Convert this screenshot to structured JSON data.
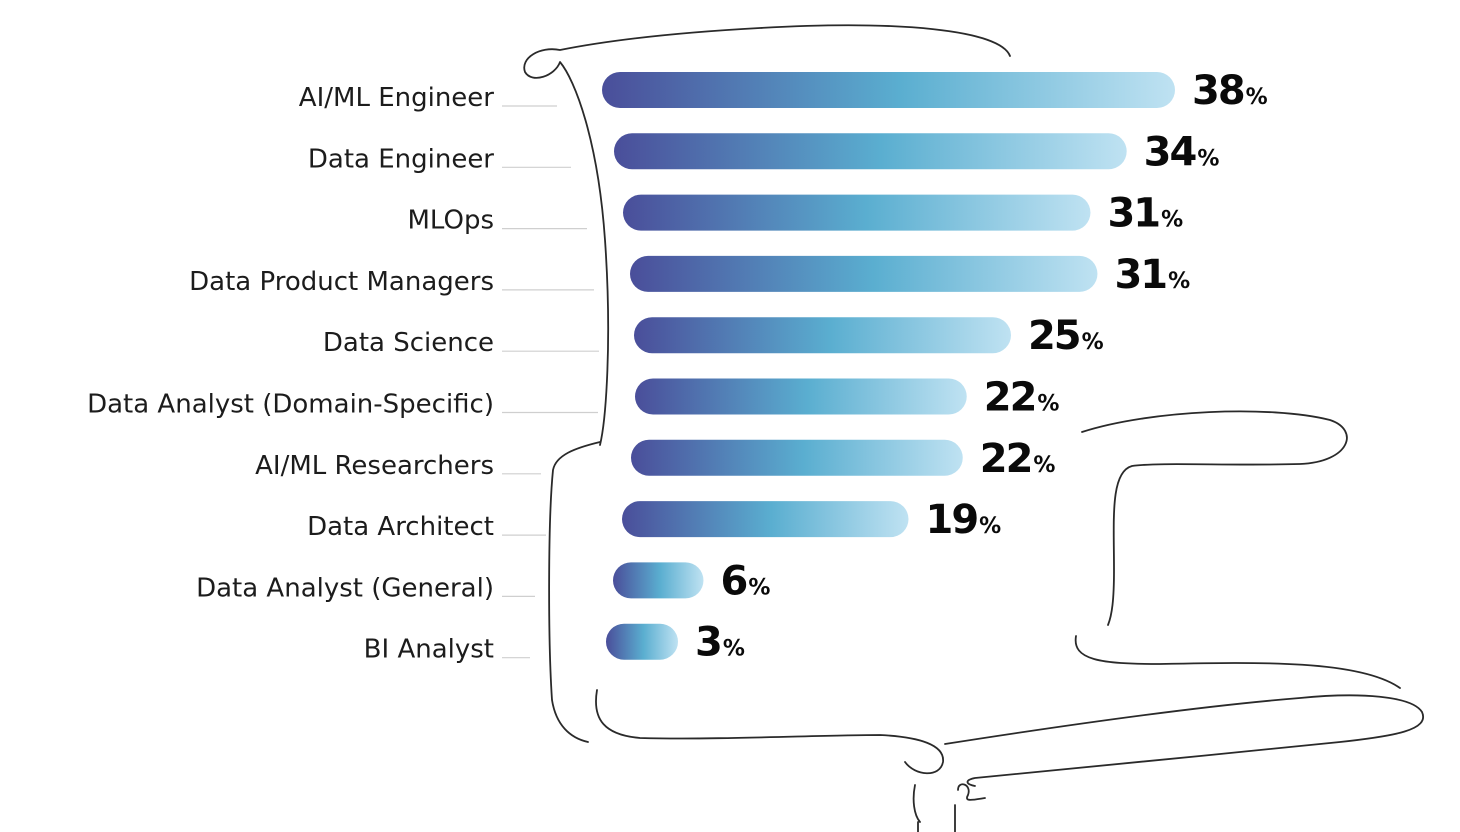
{
  "chart_data": {
    "type": "bar",
    "orientation": "horizontal",
    "categories": [
      "AI/ML Engineer",
      "Data Engineer",
      "MLOps",
      "Data Product Managers",
      "Data Science",
      "Data Analyst (Domain-Specific)",
      "AI/ML Researchers",
      "Data Architect",
      "Data Analyst (General)",
      "BI Analyst"
    ],
    "values": [
      38,
      34,
      31,
      31,
      25,
      22,
      22,
      19,
      6,
      3
    ],
    "value_suffix": "%",
    "title": "",
    "xlabel": "",
    "ylabel": "",
    "xlim": [
      0,
      38
    ],
    "grid": false,
    "legend": "none",
    "colors": {
      "bar_start": "#4a4e9a",
      "bar_mid": "#5aaed0",
      "bar_end": "#bfe2f2",
      "label": "#1c1c1c",
      "value": "#0a0a0a",
      "doodle": "#2a2a2a"
    }
  }
}
